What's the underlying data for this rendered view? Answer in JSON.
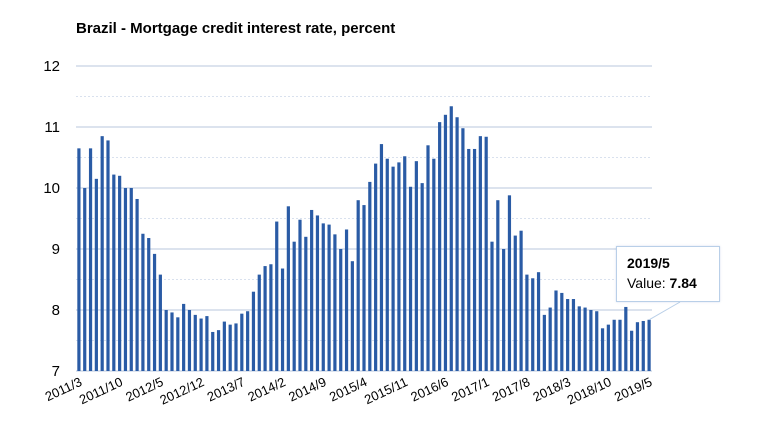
{
  "chart_data": {
    "type": "bar",
    "title": "Brazil - Mortgage credit interest rate, percent",
    "xlabel": "",
    "ylabel": "",
    "ylim": [
      7,
      12
    ],
    "yticks": [
      "7",
      "8",
      "9",
      "10",
      "11",
      "12"
    ],
    "xtick_labels": [
      "2011/3",
      "2011/10",
      "2012/5",
      "2012/12",
      "2013/7",
      "2014/2",
      "2014/9",
      "2015/4",
      "2015/11",
      "2016/6",
      "2017/1",
      "2017/8",
      "2018/3",
      "2018/10",
      "2019/5"
    ],
    "grid": true,
    "bar_color": "#2a5ba5",
    "categories": [
      "2011/3",
      "2011/4",
      "2011/5",
      "2011/6",
      "2011/7",
      "2011/8",
      "2011/9",
      "2011/10",
      "2011/11",
      "2011/12",
      "2012/1",
      "2012/2",
      "2012/3",
      "2012/4",
      "2012/5",
      "2012/6",
      "2012/7",
      "2012/8",
      "2012/9",
      "2012/10",
      "2012/11",
      "2012/12",
      "2013/1",
      "2013/2",
      "2013/3",
      "2013/4",
      "2013/5",
      "2013/6",
      "2013/7",
      "2013/8",
      "2013/9",
      "2013/10",
      "2013/11",
      "2013/12",
      "2014/1",
      "2014/2",
      "2014/3",
      "2014/4",
      "2014/5",
      "2014/6",
      "2014/7",
      "2014/8",
      "2014/9",
      "2014/10",
      "2014/11",
      "2014/12",
      "2015/1",
      "2015/2",
      "2015/3",
      "2015/4",
      "2015/5",
      "2015/6",
      "2015/7",
      "2015/8",
      "2015/9",
      "2015/10",
      "2015/11",
      "2015/12",
      "2016/1",
      "2016/2",
      "2016/3",
      "2016/4",
      "2016/5",
      "2016/6",
      "2016/7",
      "2016/8",
      "2016/9",
      "2016/10",
      "2016/11",
      "2016/12",
      "2017/1",
      "2017/2",
      "2017/3",
      "2017/4",
      "2017/5",
      "2017/6",
      "2017/7",
      "2017/8",
      "2017/9",
      "2017/10",
      "2017/11",
      "2017/12",
      "2018/1",
      "2018/2",
      "2018/3",
      "2018/4",
      "2018/5",
      "2018/6",
      "2018/7",
      "2018/8",
      "2018/9",
      "2018/10",
      "2018/11",
      "2018/12",
      "2019/1",
      "2019/2",
      "2019/3",
      "2019/4",
      "2019/5"
    ],
    "values": [
      10.65,
      10.0,
      10.65,
      10.15,
      10.85,
      10.78,
      10.22,
      10.2,
      10.0,
      10.0,
      9.82,
      9.25,
      9.18,
      8.92,
      8.58,
      8.0,
      7.96,
      7.88,
      8.1,
      8.0,
      7.92,
      7.86,
      7.9,
      7.64,
      7.67,
      7.81,
      7.76,
      7.78,
      7.94,
      7.98,
      8.3,
      8.58,
      8.72,
      8.75,
      9.45,
      8.68,
      9.7,
      9.12,
      9.48,
      9.2,
      9.64,
      9.55,
      9.42,
      9.4,
      9.24,
      9.0,
      9.32,
      8.8,
      9.8,
      9.72,
      10.1,
      10.4,
      10.72,
      10.48,
      10.35,
      10.42,
      10.52,
      10.02,
      10.44,
      10.08,
      10.7,
      10.48,
      11.08,
      11.2,
      11.34,
      11.16,
      10.98,
      10.64,
      10.64,
      10.85,
      10.84,
      9.12,
      9.8,
      9.0,
      9.88,
      9.22,
      9.3,
      8.58,
      8.52,
      8.62,
      7.92,
      8.04,
      8.32,
      8.28,
      8.18,
      8.18,
      8.06,
      8.04,
      8.0,
      7.98,
      7.7,
      7.76,
      7.84,
      7.84,
      8.05,
      7.66,
      7.8,
      7.82,
      7.84
    ],
    "tooltip": {
      "date": "2019/5",
      "label": "Value: ",
      "value": "7.84"
    }
  }
}
